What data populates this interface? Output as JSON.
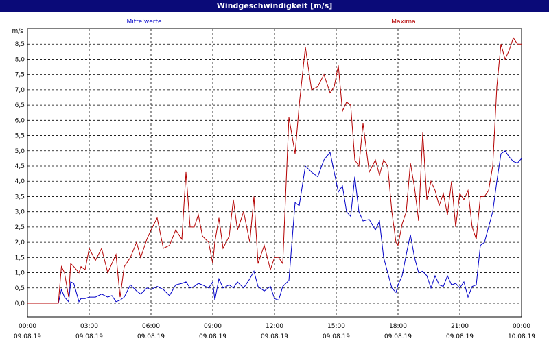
{
  "window_title": "Windgeschwindigkeit [m/s]",
  "chart_data": {
    "type": "line",
    "title": "Windgeschwindigkeit [m/s]",
    "ylabel": "m/s",
    "xlabel": "",
    "ylim": [
      -0.45,
      9.0
    ],
    "xlim_hours": [
      0,
      24
    ],
    "grid": true,
    "yticks": [
      "0,0",
      "0,5",
      "1,0",
      "1,5",
      "2,0",
      "2,5",
      "3,0",
      "3,5",
      "4,0",
      "4,5",
      "5,0",
      "5,5",
      "6,0",
      "6,5",
      "7,0",
      "7,5",
      "8,0",
      "8,5"
    ],
    "xticks": [
      {
        "time": "00:00",
        "date": "09.08.19"
      },
      {
        "time": "03:00",
        "date": "09.08.19"
      },
      {
        "time": "06:00",
        "date": "09.08.19"
      },
      {
        "time": "09:00",
        "date": "09.08.19"
      },
      {
        "time": "12:00",
        "date": "09.08.19"
      },
      {
        "time": "15:00",
        "date": "09.08.19"
      },
      {
        "time": "18:00",
        "date": "09.08.19"
      },
      {
        "time": "21:00",
        "date": "09.08.19"
      },
      {
        "time": "00:00",
        "date": "10.08.19"
      }
    ],
    "series": [
      {
        "name": "Mittelwerte",
        "color": "#0000c8",
        "x_hours": [
          0,
          1.5,
          1.65,
          1.8,
          2.0,
          2.1,
          2.25,
          2.5,
          2.6,
          2.8,
          3.0,
          3.3,
          3.6,
          3.9,
          4.1,
          4.3,
          4.5,
          4.7,
          5.0,
          5.3,
          5.5,
          5.8,
          6.0,
          6.3,
          6.6,
          6.9,
          7.2,
          7.5,
          7.7,
          7.9,
          8.1,
          8.3,
          8.5,
          8.8,
          9.0,
          9.1,
          9.3,
          9.5,
          9.8,
          10.0,
          10.2,
          10.5,
          10.8,
          11.0,
          11.2,
          11.5,
          11.8,
          12.0,
          12.2,
          12.4,
          12.7,
          13.0,
          13.2,
          13.5,
          13.8,
          14.1,
          14.4,
          14.7,
          14.9,
          15.1,
          15.3,
          15.5,
          15.7,
          15.9,
          16.1,
          16.3,
          16.6,
          16.9,
          17.1,
          17.3,
          17.5,
          17.7,
          17.9,
          18.0,
          18.2,
          18.4,
          18.6,
          18.8,
          19.0,
          19.2,
          19.4,
          19.6,
          19.8,
          20.0,
          20.2,
          20.4,
          20.6,
          20.8,
          21.0,
          21.2,
          21.4,
          21.6,
          21.8,
          22.0,
          22.2,
          22.4,
          22.6,
          22.8,
          23.0,
          23.2,
          23.4,
          23.6,
          23.8,
          24.0
        ],
        "values": [
          0.0,
          0.0,
          0.45,
          0.2,
          0.05,
          0.7,
          0.65,
          0.05,
          0.15,
          0.15,
          0.2,
          0.2,
          0.3,
          0.2,
          0.25,
          0.05,
          0.1,
          0.2,
          0.6,
          0.4,
          0.3,
          0.5,
          0.45,
          0.55,
          0.45,
          0.25,
          0.6,
          0.65,
          0.7,
          0.5,
          0.55,
          0.65,
          0.6,
          0.5,
          0.7,
          0.1,
          0.8,
          0.5,
          0.6,
          0.5,
          0.7,
          0.5,
          0.8,
          1.05,
          0.55,
          0.4,
          0.55,
          0.15,
          0.1,
          0.55,
          0.75,
          3.3,
          3.2,
          4.5,
          4.3,
          4.15,
          4.7,
          4.95,
          4.3,
          3.65,
          3.85,
          3.0,
          2.85,
          4.15,
          3.0,
          2.7,
          2.75,
          2.4,
          2.7,
          1.5,
          1.0,
          0.5,
          0.35,
          0.6,
          0.9,
          1.6,
          2.25,
          1.5,
          1.0,
          1.05,
          0.9,
          0.5,
          0.9,
          0.6,
          0.55,
          0.9,
          0.6,
          0.65,
          0.5,
          0.7,
          0.2,
          0.55,
          0.6,
          1.9,
          2.0,
          2.5,
          3.0,
          4.0,
          4.9,
          5.0,
          4.8,
          4.65,
          4.6,
          4.75
        ]
      },
      {
        "name": "Maxima",
        "color": "#b40000",
        "x_hours": [
          0,
          1.5,
          1.65,
          1.8,
          2.0,
          2.1,
          2.25,
          2.5,
          2.6,
          2.8,
          3.0,
          3.3,
          3.6,
          3.9,
          4.1,
          4.3,
          4.5,
          4.7,
          5.0,
          5.3,
          5.5,
          5.8,
          6.0,
          6.3,
          6.6,
          6.9,
          7.2,
          7.5,
          7.7,
          7.9,
          8.1,
          8.3,
          8.5,
          8.8,
          9.0,
          9.1,
          9.3,
          9.5,
          9.8,
          10.0,
          10.2,
          10.5,
          10.8,
          11.0,
          11.2,
          11.5,
          11.8,
          12.0,
          12.2,
          12.4,
          12.7,
          13.0,
          13.2,
          13.5,
          13.8,
          14.1,
          14.4,
          14.7,
          14.9,
          15.1,
          15.3,
          15.5,
          15.7,
          15.9,
          16.1,
          16.3,
          16.6,
          16.9,
          17.1,
          17.3,
          17.5,
          17.7,
          17.9,
          18.0,
          18.2,
          18.4,
          18.6,
          18.8,
          19.0,
          19.2,
          19.4,
          19.6,
          19.8,
          20.0,
          20.2,
          20.4,
          20.6,
          20.8,
          21.0,
          21.2,
          21.4,
          21.6,
          21.8,
          22.0,
          22.2,
          22.4,
          22.6,
          22.8,
          23.0,
          23.2,
          23.4,
          23.6,
          23.8,
          24.0
        ],
        "values": [
          0.0,
          0.0,
          1.2,
          1.0,
          0.2,
          1.3,
          1.2,
          1.0,
          1.2,
          1.1,
          1.8,
          1.4,
          1.8,
          1.0,
          1.3,
          1.6,
          0.2,
          1.2,
          1.5,
          2.0,
          1.5,
          2.1,
          2.4,
          2.8,
          1.8,
          1.9,
          2.4,
          2.1,
          4.3,
          2.5,
          2.5,
          2.9,
          2.2,
          2.0,
          1.3,
          2.0,
          2.8,
          1.8,
          2.2,
          3.4,
          2.4,
          3.0,
          2.0,
          3.5,
          1.3,
          1.9,
          1.1,
          1.5,
          1.5,
          1.3,
          6.1,
          4.9,
          6.5,
          8.4,
          7.0,
          7.1,
          7.5,
          6.9,
          7.1,
          7.8,
          6.3,
          6.6,
          6.5,
          4.7,
          4.5,
          5.9,
          4.3,
          4.7,
          4.2,
          4.7,
          4.5,
          3.0,
          2.0,
          1.9,
          2.6,
          3.0,
          4.6,
          3.8,
          2.7,
          5.6,
          3.4,
          4.0,
          3.7,
          3.2,
          3.6,
          2.9,
          4.0,
          2.5,
          3.6,
          3.4,
          3.7,
          2.5,
          2.1,
          3.5,
          3.5,
          3.7,
          4.5,
          7.1,
          8.5,
          8.0,
          8.3,
          8.7,
          8.5,
          8.5
        ]
      }
    ]
  }
}
